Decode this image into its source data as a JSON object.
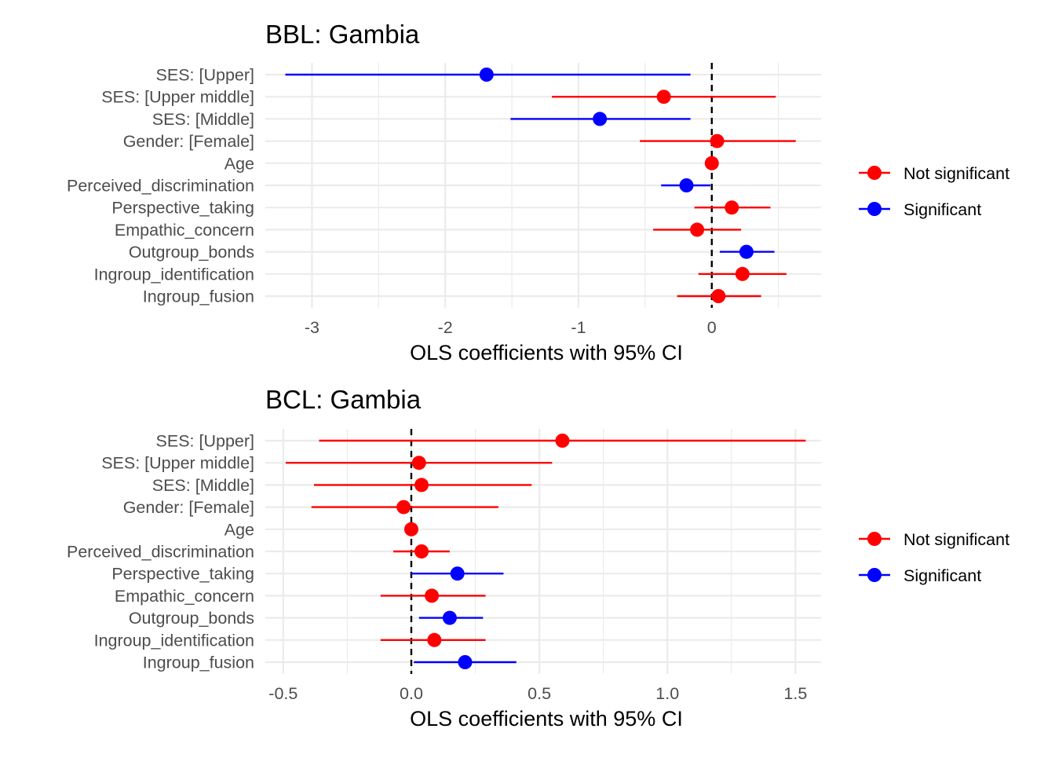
{
  "colors": {
    "not_significant": "#ff0000",
    "significant": "#0000ff",
    "grid": "#ebebeb",
    "zero_line": "#000000"
  },
  "chart_data": [
    {
      "type": "forest",
      "title": "BBL: Gambia",
      "xlabel": "OLS coefficients with 95% CI",
      "xlim": [
        -3.35,
        0.82
      ],
      "xticks": [
        -3,
        -2,
        -1,
        0
      ],
      "xtick_labels": [
        "-3",
        "-2",
        "-1",
        "0"
      ],
      "reference_line": 0,
      "legend": {
        "position": "right",
        "entries": [
          "Not significant",
          "Significant"
        ]
      },
      "terms": [
        {
          "label": "SES:  [Upper]",
          "estimate": -1.69,
          "lower": -3.2,
          "upper": -0.16,
          "significant": true
        },
        {
          "label": "SES:  [Upper middle]",
          "estimate": -0.36,
          "lower": -1.2,
          "upper": 0.48,
          "significant": false
        },
        {
          "label": "SES:  [Middle]",
          "estimate": -0.84,
          "lower": -1.51,
          "upper": -0.16,
          "significant": true
        },
        {
          "label": "Gender:  [Female]",
          "estimate": 0.04,
          "lower": -0.54,
          "upper": 0.63,
          "significant": false
        },
        {
          "label": "Age",
          "estimate": 0.0,
          "lower": -0.02,
          "upper": 0.02,
          "significant": false
        },
        {
          "label": "Perceived_discrimination",
          "estimate": -0.19,
          "lower": -0.38,
          "upper": -0.01,
          "significant": true
        },
        {
          "label": "Perspective_taking",
          "estimate": 0.15,
          "lower": -0.13,
          "upper": 0.44,
          "significant": false
        },
        {
          "label": "Empathic_concern",
          "estimate": -0.11,
          "lower": -0.44,
          "upper": 0.22,
          "significant": false
        },
        {
          "label": "Outgroup_bonds",
          "estimate": 0.26,
          "lower": 0.06,
          "upper": 0.47,
          "significant": true
        },
        {
          "label": "Ingroup_identification",
          "estimate": 0.23,
          "lower": -0.1,
          "upper": 0.56,
          "significant": false
        },
        {
          "label": "Ingroup_fusion",
          "estimate": 0.05,
          "lower": -0.26,
          "upper": 0.37,
          "significant": false
        }
      ]
    },
    {
      "type": "forest",
      "title": "BCL: Gambia",
      "xlabel": "OLS coefficients with 95% CI",
      "xlim": [
        -0.57,
        1.6
      ],
      "xticks": [
        -0.5,
        0.0,
        0.5,
        1.0,
        1.5
      ],
      "xtick_labels": [
        "-0.5",
        "0.0",
        "0.5",
        "1.0",
        "1.5"
      ],
      "reference_line": 0,
      "legend": {
        "position": "right",
        "entries": [
          "Not significant",
          "Significant"
        ]
      },
      "terms": [
        {
          "label": "SES:  [Upper]",
          "estimate": 0.59,
          "lower": -0.36,
          "upper": 1.54,
          "significant": false
        },
        {
          "label": "SES:  [Upper middle]",
          "estimate": 0.03,
          "lower": -0.49,
          "upper": 0.55,
          "significant": false
        },
        {
          "label": "SES:  [Middle]",
          "estimate": 0.04,
          "lower": -0.38,
          "upper": 0.47,
          "significant": false
        },
        {
          "label": "Gender:  [Female]",
          "estimate": -0.03,
          "lower": -0.39,
          "upper": 0.34,
          "significant": false
        },
        {
          "label": "Age",
          "estimate": 0.0,
          "lower": -0.02,
          "upper": 0.02,
          "significant": false
        },
        {
          "label": "Perceived_discrimination",
          "estimate": 0.04,
          "lower": -0.07,
          "upper": 0.15,
          "significant": false
        },
        {
          "label": "Perspective_taking",
          "estimate": 0.18,
          "lower": 0.0,
          "upper": 0.36,
          "significant": true
        },
        {
          "label": "Empathic_concern",
          "estimate": 0.08,
          "lower": -0.12,
          "upper": 0.29,
          "significant": false
        },
        {
          "label": "Outgroup_bonds",
          "estimate": 0.15,
          "lower": 0.03,
          "upper": 0.28,
          "significant": true
        },
        {
          "label": "Ingroup_identification",
          "estimate": 0.09,
          "lower": -0.12,
          "upper": 0.29,
          "significant": false
        },
        {
          "label": "Ingroup_fusion",
          "estimate": 0.21,
          "lower": 0.01,
          "upper": 0.41,
          "significant": true
        }
      ]
    }
  ]
}
